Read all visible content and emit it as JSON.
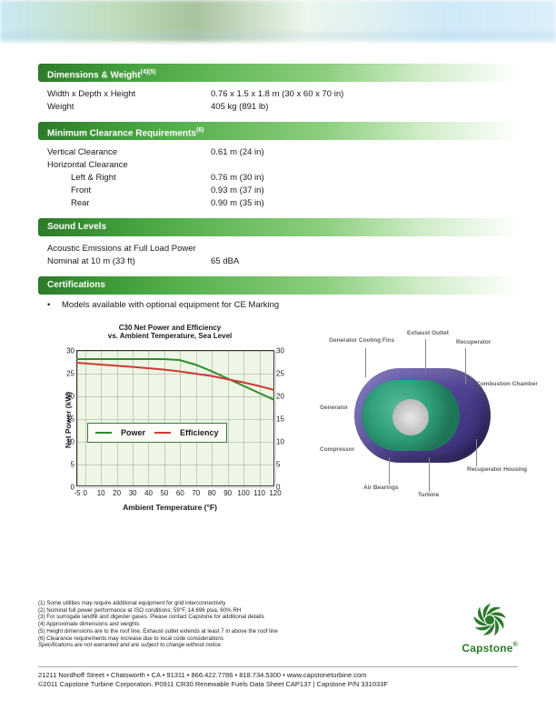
{
  "sections": {
    "dimensions": {
      "title": "Dimensions & Weight",
      "title_sup": "(4)(5)",
      "rows": [
        {
          "label": "Width x Depth x Height",
          "value": "0.76 x 1.5 x 1.8 m (30 x 60 x 70 in)",
          "indent": false
        },
        {
          "label": "Weight",
          "value": "405 kg (891 lb)",
          "indent": false
        }
      ]
    },
    "clearance": {
      "title": "Minimum Clearance Requirements",
      "title_sup": "(6)",
      "rows": [
        {
          "label": "Vertical Clearance",
          "value": "0.61 m (24 in)",
          "indent": false
        },
        {
          "label": "Horizontal Clearance",
          "value": "",
          "indent": false
        },
        {
          "label": "Left & Right",
          "value": "0.76 m (30 in)",
          "indent": true
        },
        {
          "label": "Front",
          "value": "0.93 m (37 in)",
          "indent": true
        },
        {
          "label": "Rear",
          "value": "0.90 m (35 in)",
          "indent": true
        }
      ]
    },
    "sound": {
      "title": "Sound Levels",
      "note": "Acoustic Emissions at Full Load Power",
      "rows": [
        {
          "label": "Nominal at 10 m (33 ft)",
          "value": "65 dBA",
          "indent": false
        }
      ]
    },
    "cert": {
      "title": "Certifications",
      "bullet": "Models available with optional equipment for CE Marking"
    }
  },
  "chart": {
    "type": "line",
    "title_l1": "C30 Net Power and Efficiency",
    "title_l2": "vs. Ambient Temperature, Sea Level",
    "title_fontsize": 9,
    "background_color": "#eef7e5",
    "border_color": "#333333",
    "grid_color": "rgba(120,120,120,0.35)",
    "x": {
      "label": "Ambient Temperature (°F)",
      "min": -5,
      "max": 120,
      "step": 10,
      "ticks": [
        -5,
        0,
        10,
        20,
        30,
        40,
        50,
        60,
        70,
        80,
        90,
        100,
        110,
        120
      ]
    },
    "y_left": {
      "label": "Net Power (kW)",
      "min": 0,
      "max": 30,
      "step": 5,
      "ticks": [
        0,
        5,
        10,
        15,
        20,
        25,
        30
      ]
    },
    "y_right": {
      "label": "Net Efficiency (%)",
      "min": 0,
      "max": 30,
      "step": 5,
      "ticks": [
        0,
        5,
        10,
        15,
        20,
        25,
        30
      ]
    },
    "series": {
      "power": {
        "label": "Power",
        "color": "#2e8b2e",
        "width": 2,
        "points": [
          {
            "x": -5,
            "y": 28.0
          },
          {
            "x": 10,
            "y": 28.0
          },
          {
            "x": 30,
            "y": 28.0
          },
          {
            "x": 50,
            "y": 28.0
          },
          {
            "x": 60,
            "y": 27.8
          },
          {
            "x": 70,
            "y": 26.8
          },
          {
            "x": 80,
            "y": 25.4
          },
          {
            "x": 90,
            "y": 23.8
          },
          {
            "x": 100,
            "y": 22.2
          },
          {
            "x": 110,
            "y": 20.6
          },
          {
            "x": 120,
            "y": 19.0
          }
        ]
      },
      "efficiency": {
        "label": "Efficiency",
        "color": "#cc3a34",
        "width": 2,
        "points": [
          {
            "x": -5,
            "y": 27.2
          },
          {
            "x": 10,
            "y": 26.8
          },
          {
            "x": 30,
            "y": 26.3
          },
          {
            "x": 50,
            "y": 25.7
          },
          {
            "x": 60,
            "y": 25.3
          },
          {
            "x": 70,
            "y": 24.8
          },
          {
            "x": 80,
            "y": 24.3
          },
          {
            "x": 90,
            "y": 23.6
          },
          {
            "x": 100,
            "y": 22.9
          },
          {
            "x": 110,
            "y": 22.1
          },
          {
            "x": 120,
            "y": 21.2
          }
        ]
      }
    },
    "legend": {
      "bg": "#fdfdf8",
      "border": "#3a7a36"
    }
  },
  "diagram": {
    "purple": "#4b3f8f",
    "green": "#2da77a",
    "labels": {
      "gen_fins": "Generator Cooling Fins",
      "exhaust": "Exhaust Outlet",
      "recuperator": "Recuperator",
      "combustion": "Combustion Chamber",
      "generator": "Generator",
      "compressor": "Compressor",
      "bearings": "Air Bearings",
      "turbine": "Turbine",
      "housing": "Recuperator Housing"
    }
  },
  "footnotes": {
    "n1": "(1)   Some utilities may require additional equipment for grid interconnectivity",
    "n2": "(2)   Nominal full power performance at ISO conditions: 59°F, 14.696 psia, 60% RH",
    "n3": "(3)   For surrogate landfill and digester gases. Please contact Capstone for additional details",
    "n4": "(4)   Approximate dimensions and weights",
    "n5": "(5)   Height dimensions are to the roof line. Exhaust outlet extends at least 7 in above the roof line",
    "n6": "(6)   Clearance requirements may increase due to local code considerations",
    "disclaimer": "Specifications are not warranted and are subject to change without notice."
  },
  "logo": {
    "name": "Capstone",
    "color": "#2a7a2a"
  },
  "footer": {
    "address": "21211 Nordhoff Street • Chatsworth • CA • 91311 • 866.422.7786 • 818.734.5300 • www.capstoneturbine.com",
    "copyright": "©2011 Capstone Turbine Corporation.   P0911 CR30 Renewable Fuels Data Sheet CAP137 | Capstone P/N 331033F"
  }
}
